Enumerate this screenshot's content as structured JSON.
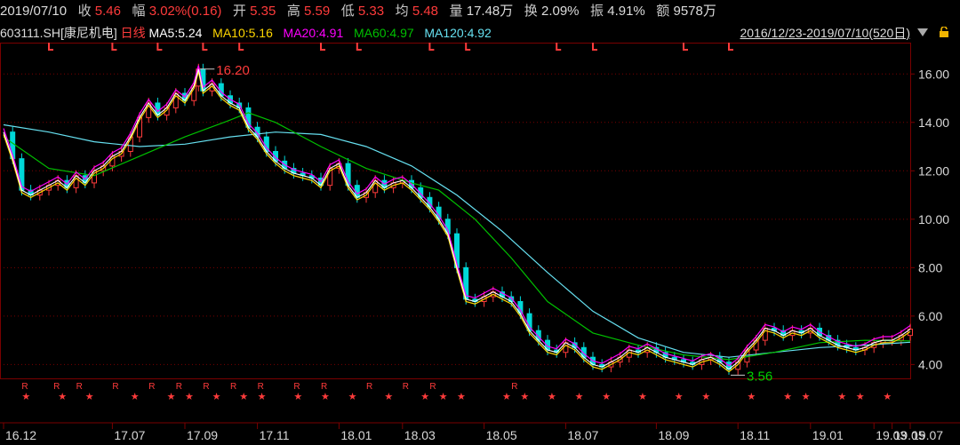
{
  "header": {
    "date": "2019/07/10",
    "close_label": "收",
    "close": "5.46",
    "change_label": "幅",
    "change": "3.02%(0.16)",
    "open_label": "开",
    "open": "5.35",
    "high_label": "高",
    "high": "5.59",
    "low_label": "低",
    "low": "5.33",
    "avg_label": "均",
    "avg": "5.48",
    "volume_label": "量",
    "volume": "17.48万",
    "turnover_label": "换",
    "turnover": "2.09%",
    "amplitude_label": "振",
    "amplitude": "4.91%",
    "amount_label": "额",
    "amount": "9578万"
  },
  "indicator_bar": {
    "symbol": "603111.SH",
    "name": "[康尼机电]",
    "period": "日线",
    "ma5": "MA5:5.24",
    "ma10": "MA10:5.16",
    "ma20": "MA20:4.91",
    "ma60": "MA60:4.97",
    "ma120": "MA120:4.92",
    "date_range": "2016/12/23-2019/07/10(520日)"
  },
  "colors": {
    "up": "#ff3b3b",
    "down": "#00d8d8",
    "ma5": "#ffffff",
    "ma10": "#ffd700",
    "ma20": "#ff00ff",
    "ma60": "#00c000",
    "ma120": "#66e0f0",
    "grid": "#7a0000",
    "axis_text": "#d8d8d8"
  },
  "chart_data": {
    "type": "candlestick",
    "ylim": [
      3.5,
      17.0
    ],
    "yticks": [
      "16.00",
      "14.00",
      "12.00",
      "10.00",
      "8.00",
      "6.00",
      "4.00"
    ],
    "ytick_values": [
      16,
      14,
      12,
      10,
      8,
      6,
      4
    ],
    "xticks": [
      "16.12",
      "17.07",
      "17.09",
      "17.11",
      "18.01",
      "18.03",
      "18.05",
      "18.07",
      "18.09",
      "18.11",
      "19.01",
      "19.03",
      "19.05",
      "19.07"
    ],
    "xtick_pos": [
      0.0,
      0.12,
      0.2,
      0.28,
      0.37,
      0.44,
      0.53,
      0.62,
      0.72,
      0.81,
      0.89,
      0.96,
      0.98,
      1.0
    ],
    "close_path": [
      [
        0,
        13.6
      ],
      [
        0.01,
        12.5
      ],
      [
        0.02,
        11.2
      ],
      [
        0.03,
        11.0
      ],
      [
        0.04,
        11.2
      ],
      [
        0.05,
        11.4
      ],
      [
        0.06,
        11.6
      ],
      [
        0.07,
        11.3
      ],
      [
        0.08,
        11.8
      ],
      [
        0.09,
        11.5
      ],
      [
        0.1,
        12.0
      ],
      [
        0.11,
        12.2
      ],
      [
        0.12,
        12.6
      ],
      [
        0.13,
        12.8
      ],
      [
        0.14,
        13.4
      ],
      [
        0.15,
        14.2
      ],
      [
        0.16,
        14.8
      ],
      [
        0.17,
        14.3
      ],
      [
        0.18,
        14.6
      ],
      [
        0.19,
        15.2
      ],
      [
        0.2,
        14.9
      ],
      [
        0.21,
        15.5
      ],
      [
        0.215,
        16.2
      ],
      [
        0.22,
        15.3
      ],
      [
        0.23,
        15.6
      ],
      [
        0.24,
        15.1
      ],
      [
        0.25,
        14.8
      ],
      [
        0.26,
        14.6
      ],
      [
        0.27,
        13.8
      ],
      [
        0.28,
        13.4
      ],
      [
        0.29,
        12.8
      ],
      [
        0.3,
        12.4
      ],
      [
        0.31,
        12.1
      ],
      [
        0.32,
        11.9
      ],
      [
        0.33,
        11.8
      ],
      [
        0.34,
        11.7
      ],
      [
        0.35,
        11.4
      ],
      [
        0.36,
        12.1
      ],
      [
        0.37,
        12.3
      ],
      [
        0.38,
        11.4
      ],
      [
        0.39,
        10.9
      ],
      [
        0.4,
        11.1
      ],
      [
        0.41,
        11.6
      ],
      [
        0.42,
        11.3
      ],
      [
        0.43,
        11.5
      ],
      [
        0.44,
        11.6
      ],
      [
        0.45,
        11.3
      ],
      [
        0.46,
        10.9
      ],
      [
        0.47,
        10.5
      ],
      [
        0.48,
        10.0
      ],
      [
        0.49,
        9.4
      ],
      [
        0.5,
        8.0
      ],
      [
        0.51,
        6.7
      ],
      [
        0.52,
        6.6
      ],
      [
        0.53,
        6.8
      ],
      [
        0.54,
        7.0
      ],
      [
        0.55,
        6.8
      ],
      [
        0.56,
        6.6
      ],
      [
        0.57,
        6.1
      ],
      [
        0.58,
        5.4
      ],
      [
        0.59,
        5.0
      ],
      [
        0.6,
        4.6
      ],
      [
        0.61,
        4.5
      ],
      [
        0.62,
        4.9
      ],
      [
        0.63,
        4.7
      ],
      [
        0.64,
        4.3
      ],
      [
        0.65,
        4.0
      ],
      [
        0.66,
        3.9
      ],
      [
        0.67,
        4.1
      ],
      [
        0.68,
        4.3
      ],
      [
        0.69,
        4.6
      ],
      [
        0.7,
        4.5
      ],
      [
        0.71,
        4.7
      ],
      [
        0.72,
        4.5
      ],
      [
        0.73,
        4.3
      ],
      [
        0.74,
        4.2
      ],
      [
        0.75,
        4.1
      ],
      [
        0.76,
        4.0
      ],
      [
        0.77,
        4.2
      ],
      [
        0.78,
        4.3
      ],
      [
        0.79,
        4.1
      ],
      [
        0.8,
        3.8
      ],
      [
        0.81,
        4.1
      ],
      [
        0.82,
        4.6
      ],
      [
        0.83,
        5.0
      ],
      [
        0.84,
        5.5
      ],
      [
        0.85,
        5.4
      ],
      [
        0.86,
        5.2
      ],
      [
        0.87,
        5.4
      ],
      [
        0.88,
        5.3
      ],
      [
        0.89,
        5.5
      ],
      [
        0.9,
        5.2
      ],
      [
        0.91,
        5.0
      ],
      [
        0.92,
        4.8
      ],
      [
        0.93,
        4.7
      ],
      [
        0.94,
        4.6
      ],
      [
        0.95,
        4.7
      ],
      [
        0.96,
        4.9
      ],
      [
        0.97,
        5.0
      ],
      [
        0.98,
        5.0
      ],
      [
        0.99,
        5.2
      ],
      [
        1.0,
        5.46
      ]
    ],
    "ma120_path": [
      [
        0,
        13.9
      ],
      [
        0.05,
        13.6
      ],
      [
        0.1,
        13.2
      ],
      [
        0.15,
        13.0
      ],
      [
        0.2,
        13.1
      ],
      [
        0.25,
        13.4
      ],
      [
        0.3,
        13.6
      ],
      [
        0.35,
        13.5
      ],
      [
        0.4,
        13.0
      ],
      [
        0.45,
        12.2
      ],
      [
        0.5,
        11.0
      ],
      [
        0.55,
        9.5
      ],
      [
        0.6,
        7.8
      ],
      [
        0.65,
        6.2
      ],
      [
        0.7,
        5.1
      ],
      [
        0.75,
        4.5
      ],
      [
        0.8,
        4.3
      ],
      [
        0.85,
        4.5
      ],
      [
        0.9,
        4.7
      ],
      [
        0.95,
        4.8
      ],
      [
        1.0,
        4.92
      ]
    ],
    "ma60_path": [
      [
        0,
        13.4
      ],
      [
        0.05,
        12.1
      ],
      [
        0.1,
        11.8
      ],
      [
        0.15,
        12.6
      ],
      [
        0.2,
        13.4
      ],
      [
        0.25,
        14.1
      ],
      [
        0.27,
        14.4
      ],
      [
        0.3,
        14.0
      ],
      [
        0.35,
        13.0
      ],
      [
        0.4,
        12.1
      ],
      [
        0.45,
        11.5
      ],
      [
        0.48,
        11.2
      ],
      [
        0.52,
        10.0
      ],
      [
        0.56,
        8.4
      ],
      [
        0.6,
        6.6
      ],
      [
        0.65,
        5.3
      ],
      [
        0.7,
        4.8
      ],
      [
        0.75,
        4.4
      ],
      [
        0.8,
        4.2
      ],
      [
        0.85,
        4.5
      ],
      [
        0.9,
        4.9
      ],
      [
        0.95,
        5.0
      ],
      [
        1.0,
        4.97
      ]
    ],
    "annotations": [
      {
        "text": "16.20",
        "x": 0.215,
        "y": 16.2,
        "color": "#ff3b3b"
      },
      {
        "text": "3.56",
        "x": 0.8,
        "y": 3.56,
        "color": "#00d000"
      }
    ],
    "marks_R": [
      0.02,
      0.055,
      0.08,
      0.12,
      0.16,
      0.19,
      0.22,
      0.25,
      0.28,
      0.32,
      0.35,
      0.4,
      0.44,
      0.47,
      0.56
    ],
    "marks_star": [
      0.02,
      0.06,
      0.09,
      0.14,
      0.18,
      0.2,
      0.23,
      0.26,
      0.28,
      0.32,
      0.35,
      0.38,
      0.42,
      0.46,
      0.48,
      0.5,
      0.55,
      0.57,
      0.6,
      0.63,
      0.66,
      0.7,
      0.74,
      0.77,
      0.82,
      0.86,
      0.88,
      0.92,
      0.94,
      0.97
    ],
    "grid": true
  }
}
